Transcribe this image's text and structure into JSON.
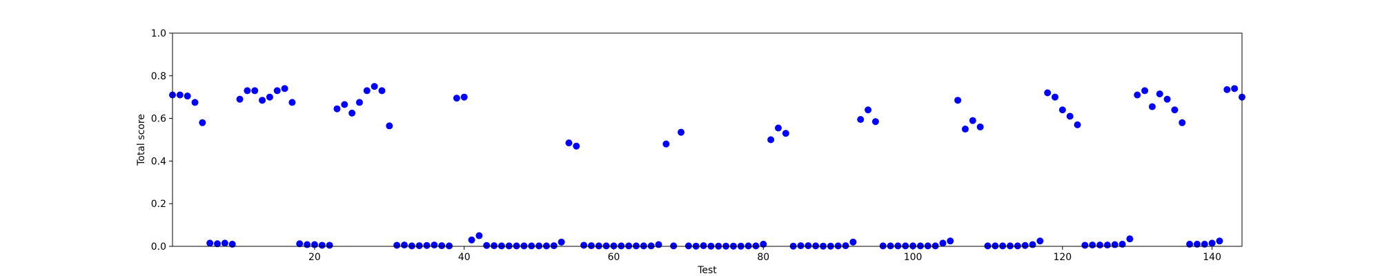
{
  "chart_data": {
    "type": "scatter",
    "title": "",
    "xlabel": "Test",
    "ylabel": "Total score",
    "xlim": [
      1,
      144
    ],
    "ylim": [
      0.0,
      1.0
    ],
    "xticks": [
      20,
      40,
      60,
      80,
      100,
      120,
      140
    ],
    "xtick_labels": [
      "20",
      "40",
      "60",
      "80",
      "100",
      "120",
      "140"
    ],
    "yticks": [
      0.0,
      0.2,
      0.4,
      0.6,
      0.8,
      1.0
    ],
    "ytick_labels": [
      "0.0",
      "0.2",
      "0.4",
      "0.6",
      "0.8",
      "1.0"
    ],
    "grid": false,
    "marker_color": "#0000ff",
    "series": [
      {
        "x": [
          1,
          2,
          3,
          4,
          5,
          6,
          7,
          8,
          9,
          10,
          11,
          12,
          13,
          14,
          15,
          16,
          17,
          18,
          19,
          20,
          21,
          22,
          23,
          24,
          25,
          26,
          27,
          28,
          29,
          30,
          31,
          32,
          33,
          34,
          35,
          36,
          37,
          38,
          39,
          40,
          41,
          42,
          43,
          44,
          45,
          46,
          47,
          48,
          49,
          50,
          51,
          52,
          53,
          54,
          55,
          56,
          57,
          58,
          59,
          60,
          61,
          62,
          63,
          64,
          65,
          66,
          67,
          68,
          69,
          70,
          71,
          72,
          73,
          74,
          75,
          76,
          77,
          78,
          79,
          80,
          81,
          82,
          83,
          84,
          85,
          86,
          87,
          88,
          89,
          90,
          91,
          92,
          93,
          94,
          95,
          96,
          97,
          98,
          99,
          100,
          101,
          102,
          103,
          104,
          105,
          106,
          107,
          108,
          109,
          110,
          111,
          112,
          113,
          114,
          115,
          116,
          117,
          118,
          119,
          120,
          121,
          122,
          123,
          124,
          125,
          126,
          127,
          128,
          129,
          130,
          131,
          132,
          133,
          134,
          135,
          136,
          137,
          138,
          139,
          140,
          141,
          142,
          143,
          144
        ],
        "y": [
          0.71,
          0.71,
          0.705,
          0.675,
          0.58,
          0.015,
          0.012,
          0.015,
          0.01,
          0.69,
          0.73,
          0.73,
          0.685,
          0.7,
          0.73,
          0.74,
          0.675,
          0.012,
          0.008,
          0.008,
          0.005,
          0.005,
          0.645,
          0.665,
          0.625,
          0.675,
          0.73,
          0.75,
          0.73,
          0.565,
          0.005,
          0.006,
          0.002,
          0.003,
          0.004,
          0.006,
          0.003,
          0.002,
          0.695,
          0.7,
          0.03,
          0.05,
          0.004,
          0.003,
          0.002,
          0.002,
          0.002,
          0.002,
          0.002,
          0.002,
          0.002,
          0.003,
          0.02,
          0.485,
          0.47,
          0.005,
          0.003,
          0.002,
          0.002,
          0.002,
          0.002,
          0.002,
          0.002,
          0.002,
          0.002,
          0.008,
          0.48,
          0.002,
          0.535,
          0.002,
          0.001,
          0.003,
          0.001,
          0.001,
          0.001,
          0.001,
          0.001,
          0.002,
          0.002,
          0.01,
          0.5,
          0.555,
          0.53,
          0.001,
          0.003,
          0.003,
          0.002,
          0.001,
          0.001,
          0.002,
          0.003,
          0.02,
          0.595,
          0.64,
          0.585,
          0.002,
          0.002,
          0.002,
          0.002,
          0.002,
          0.002,
          0.002,
          0.002,
          0.015,
          0.025,
          0.685,
          0.55,
          0.59,
          0.56,
          0.002,
          0.002,
          0.002,
          0.002,
          0.002,
          0.004,
          0.008,
          0.025,
          0.72,
          0.7,
          0.64,
          0.61,
          0.57,
          0.005,
          0.006,
          0.006,
          0.006,
          0.008,
          0.01,
          0.035,
          0.71,
          0.73,
          0.655,
          0.715,
          0.69,
          0.64,
          0.58,
          0.01,
          0.01,
          0.01,
          0.015,
          0.025,
          0.735,
          0.74,
          0.7
        ]
      }
    ]
  }
}
